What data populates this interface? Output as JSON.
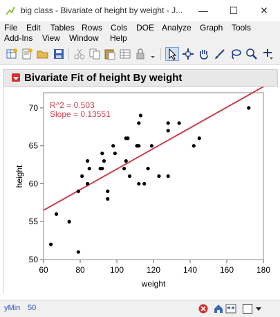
{
  "window": {
    "title": "big class - Bivariate of height by weight - J...",
    "min_glyph": "—",
    "max_glyph": "☐",
    "close_glyph": "✕"
  },
  "menu": [
    "File",
    "Edit",
    "Tables",
    "Rows",
    "Cols",
    "DOE",
    "Analyze",
    "Graph",
    "Tools",
    "Add-Ins",
    "View",
    "Window",
    "Help"
  ],
  "toolbar_icons": [
    "new-table-icon",
    "new-script-icon",
    "open-icon",
    "save-icon",
    "cut-icon",
    "copy-icon",
    "paste-icon",
    "data-grid-icon",
    "lock-icon",
    "arrow-tool-icon",
    "crosshair-tool-icon",
    "hand-tool-icon",
    "brush-tool-icon",
    "lasso-tool-icon",
    "magnifier-tool-icon",
    "annotate-tool-icon"
  ],
  "report": {
    "title": "Bivariate Fit of height By weight"
  },
  "chart_data": {
    "type": "scatter",
    "xlabel": "weight",
    "ylabel": "height",
    "xlim": [
      60,
      180
    ],
    "ylim": [
      50,
      72
    ],
    "x_ticks": [
      60,
      80,
      100,
      120,
      140,
      160,
      180
    ],
    "y_ticks": [
      50,
      55,
      60,
      65,
      70
    ],
    "annotation_lines": [
      "R^2 = 0.503",
      "Slope = 0.13551"
    ],
    "fit_line": {
      "x": [
        60,
        180
      ],
      "y": [
        56.5,
        72.8
      ],
      "color": "#c84050"
    },
    "point_color": "#000000",
    "points": [
      [
        64,
        52
      ],
      [
        67,
        56
      ],
      [
        74,
        55
      ],
      [
        79,
        59
      ],
      [
        79,
        51
      ],
      [
        81,
        61
      ],
      [
        84,
        63
      ],
      [
        84,
        60
      ],
      [
        85,
        62
      ],
      [
        91,
        62
      ],
      [
        92,
        62
      ],
      [
        92,
        64
      ],
      [
        93,
        63
      ],
      [
        95,
        59
      ],
      [
        95,
        58
      ],
      [
        98,
        65
      ],
      [
        99,
        64
      ],
      [
        104,
        62
      ],
      [
        105,
        66
      ],
      [
        106,
        66
      ],
      [
        105,
        63
      ],
      [
        107,
        61
      ],
      [
        111,
        65
      ],
      [
        111,
        65
      ],
      [
        112,
        68
      ],
      [
        112,
        65
      ],
      [
        112,
        60
      ],
      [
        113,
        69
      ],
      [
        115,
        60
      ],
      [
        117,
        62
      ],
      [
        119,
        65
      ],
      [
        123,
        61
      ],
      [
        128,
        68
      ],
      [
        128,
        67
      ],
      [
        128,
        61
      ],
      [
        134,
        68
      ],
      [
        142,
        65
      ],
      [
        145,
        66
      ],
      [
        172,
        70
      ]
    ]
  },
  "status": {
    "label": "yMin",
    "value": "50"
  }
}
